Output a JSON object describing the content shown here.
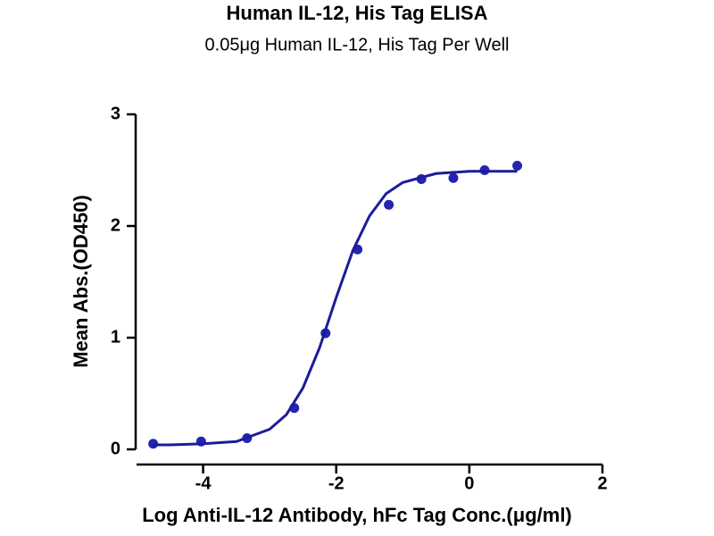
{
  "chart_data": {
    "type": "scatter",
    "title": "Human IL-12, His Tag ELISA",
    "subtitle": "0.05μg Human IL-12, His Tag Per Well",
    "xlabel": "Log Anti-IL-12 Antibody, hFc Tag Conc.(μg/ml)",
    "ylabel": "Mean Abs.(OD450)",
    "xlim": [
      -5,
      2
    ],
    "ylim": [
      0,
      3
    ],
    "xticks": [
      -4,
      -2,
      0,
      2
    ],
    "yticks": [
      0,
      1,
      2,
      3
    ],
    "series": [
      {
        "type": "scatter",
        "color": "#2424b0",
        "x": [
          -4.75,
          -4.03,
          -3.34,
          -2.63,
          -2.16,
          -1.68,
          -1.21,
          -0.72,
          -0.24,
          0.23,
          0.72
        ],
        "values": [
          0.05,
          0.07,
          0.1,
          0.37,
          1.04,
          1.79,
          2.19,
          2.42,
          2.43,
          2.5,
          2.54
        ]
      },
      {
        "type": "line",
        "color": "#1c1c9c",
        "x": [
          -4.75,
          -4.5,
          -4,
          -3.5,
          -3,
          -2.75,
          -2.5,
          -2.25,
          -2,
          -1.75,
          -1.5,
          -1.25,
          -1,
          -0.5,
          0,
          0.72
        ],
        "values": [
          0.04,
          0.04,
          0.05,
          0.07,
          0.18,
          0.31,
          0.55,
          0.91,
          1.36,
          1.78,
          2.09,
          2.29,
          2.39,
          2.47,
          2.49,
          2.49
        ]
      }
    ]
  }
}
